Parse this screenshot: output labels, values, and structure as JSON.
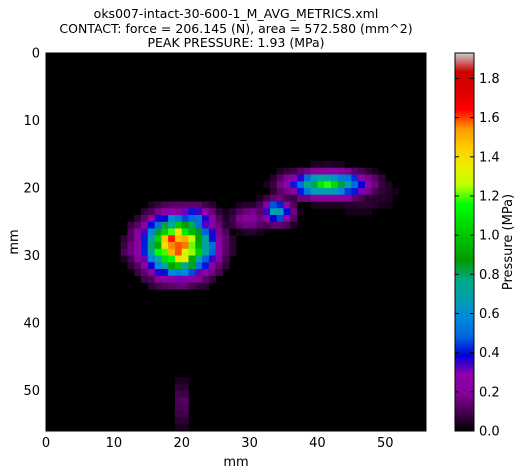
{
  "chart_data": {
    "type": "heatmap",
    "title_lines": [
      "oks007-intact-30-600-1_M_AVG_METRICS.xml",
      "CONTACT: force = 206.145 (N), area = 572.580 (mm^2)",
      "PEAK PRESSURE: 1.93 (MPa)"
    ],
    "xlabel": "mm",
    "ylabel": "mm",
    "xlim": [
      0,
      56
    ],
    "ylim": [
      56,
      0
    ],
    "xticks": [
      0,
      10,
      20,
      30,
      40,
      50
    ],
    "yticks": [
      0,
      10,
      20,
      30,
      40,
      50
    ],
    "colorbar": {
      "label": "Pressure (MPa)",
      "range": [
        0.0,
        1.93
      ],
      "ticks": [
        0.0,
        0.2,
        0.4,
        0.6,
        0.8,
        1.0,
        1.2,
        1.4,
        1.6,
        1.8
      ],
      "tick_labels": [
        "0.0",
        "0.2",
        "0.4",
        "0.6",
        "0.8",
        "1.0",
        "1.2",
        "1.4",
        "1.6",
        "1.8"
      ],
      "colormap": "nipy_spectral"
    },
    "grid_size": [
      56,
      56
    ],
    "regions": [
      {
        "cx": 19.5,
        "cy": 28.5,
        "rx": 6.5,
        "ry": 5.5,
        "peak": 1.93
      },
      {
        "cx": 16.5,
        "cy": 27.5,
        "rx": 4.0,
        "ry": 3.5,
        "peak": 0.75
      },
      {
        "cx": 22.0,
        "cy": 24.5,
        "rx": 4.0,
        "ry": 2.5,
        "peak": 0.6
      },
      {
        "cx": 34.0,
        "cy": 23.5,
        "rx": 3.0,
        "ry": 2.5,
        "peak": 0.75
      },
      {
        "cx": 41.5,
        "cy": 19.5,
        "rx": 7.5,
        "ry": 2.5,
        "peak": 1.15
      },
      {
        "cx": 30.0,
        "cy": 24.5,
        "rx": 4.0,
        "ry": 2.5,
        "peak": 0.25
      },
      {
        "cx": 12.5,
        "cy": 29.0,
        "rx": 2.0,
        "ry": 2.5,
        "peak": 0.2
      },
      {
        "cx": 20.0,
        "cy": 52.0,
        "rx": 1.5,
        "ry": 5.0,
        "peak": 0.15
      },
      {
        "cx": 46.0,
        "cy": 21.0,
        "rx": 9.0,
        "ry": 4.0,
        "peak": 0.08
      }
    ]
  }
}
